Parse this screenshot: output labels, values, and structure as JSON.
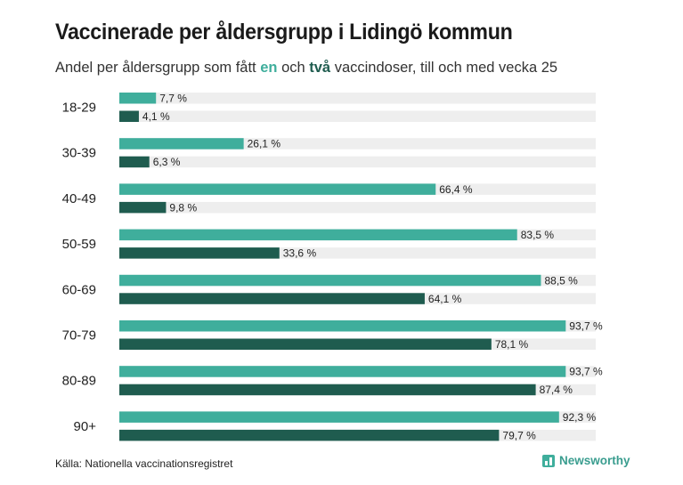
{
  "title": "Vaccinerade per åldersgrupp i Lidingö kommun",
  "subtitle": {
    "before": "Andel per åldersgrupp som fått ",
    "dose1": "en",
    "middle": " och ",
    "dose2": "två",
    "after": " vaccindoser, till och med vecka 25"
  },
  "source": "Källa: Nationella vaccinationsregistret",
  "brand": "Newsworthy",
  "colors": {
    "dose1": "#3fae9c",
    "dose2": "#1f5c4f",
    "track": "#eeeeee"
  },
  "chart_data": {
    "type": "bar",
    "orientation": "horizontal",
    "categories": [
      "18-29",
      "30-39",
      "40-49",
      "50-59",
      "60-69",
      "70-79",
      "80-89",
      "90+"
    ],
    "series": [
      {
        "key": "dose1",
        "values": [
          7.7,
          26.1,
          66.4,
          83.5,
          88.5,
          93.7,
          93.7,
          92.3
        ],
        "labels": [
          "7,7 %",
          "26,1 %",
          "66,4 %",
          "83,5 %",
          "88,5 %",
          "93,7 %",
          "93,7 %",
          "92,3 %"
        ]
      },
      {
        "key": "dose2",
        "values": [
          4.1,
          6.3,
          9.8,
          33.6,
          64.1,
          78.1,
          87.4,
          79.7
        ],
        "labels": [
          "4,1 %",
          "6,3 %",
          "9,8 %",
          "33,6 %",
          "64,1 %",
          "78,1 %",
          "87,4 %",
          "79,7 %"
        ]
      }
    ],
    "xlim": [
      0,
      100
    ]
  }
}
